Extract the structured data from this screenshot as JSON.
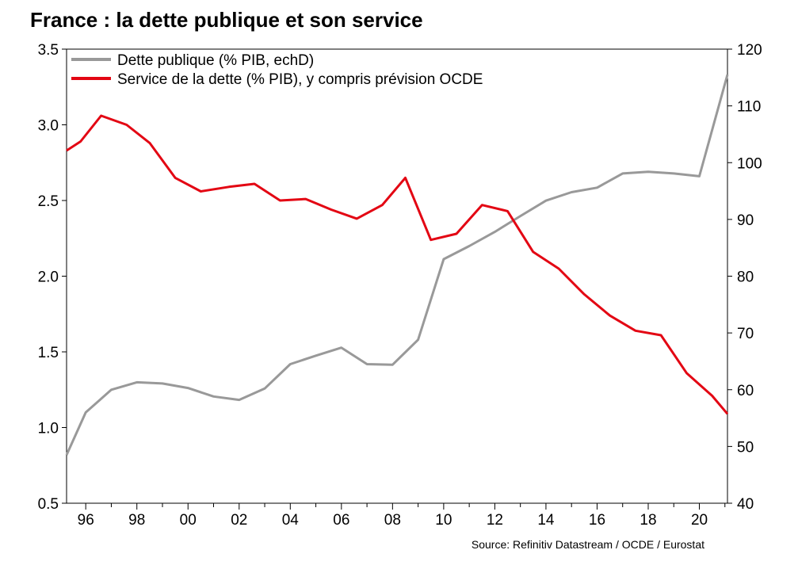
{
  "chart_data": {
    "type": "line",
    "title": "France : la dette publique et son service",
    "source": "Source: Refinitiv Datastream / OCDE / Eurostat",
    "x_range": [
      1995.25,
      2021.1
    ],
    "x_ticks": [
      1996,
      1998,
      2000,
      2002,
      2004,
      2006,
      2008,
      2010,
      2012,
      2014,
      2016,
      2018,
      2020
    ],
    "x_tick_labels": [
      "96",
      "98",
      "00",
      "02",
      "04",
      "06",
      "08",
      "10",
      "12",
      "14",
      "16",
      "18",
      "20"
    ],
    "y_left": {
      "range": [
        0.5,
        3.5
      ],
      "ticks": [
        0.5,
        1.0,
        1.5,
        2.0,
        2.5,
        3.0,
        3.5
      ],
      "tick_labels": [
        "0.5",
        "1.0",
        "1.5",
        "2.0",
        "2.5",
        "3.0",
        "3.5"
      ]
    },
    "y_right": {
      "range": [
        40,
        120
      ],
      "ticks": [
        40,
        50,
        60,
        70,
        80,
        90,
        100,
        110,
        120
      ],
      "tick_labels": [
        "40",
        "50",
        "60",
        "70",
        "80",
        "90",
        "100",
        "110",
        "120"
      ]
    },
    "legend_position": "top-left",
    "grid": false,
    "series": [
      {
        "name": "Dette publique (% PIB, echD)",
        "axis": "right",
        "color": "#999999",
        "points": [
          [
            1995.25,
            48.5
          ],
          [
            1996.0,
            56.0
          ],
          [
            1997.0,
            60.0
          ],
          [
            1998.0,
            61.3
          ],
          [
            1999.0,
            61.1
          ],
          [
            2000.0,
            60.3
          ],
          [
            2001.0,
            58.8
          ],
          [
            2002.0,
            58.2
          ],
          [
            2003.0,
            60.2
          ],
          [
            2004.0,
            64.5
          ],
          [
            2005.0,
            66.0
          ],
          [
            2006.0,
            67.4
          ],
          [
            2007.0,
            64.5
          ],
          [
            2008.0,
            64.4
          ],
          [
            2009.0,
            68.8
          ],
          [
            2010.0,
            83.0
          ],
          [
            2011.0,
            85.3
          ],
          [
            2012.0,
            87.8
          ],
          [
            2013.0,
            90.6
          ],
          [
            2014.0,
            93.3
          ],
          [
            2015.0,
            94.8
          ],
          [
            2016.0,
            95.6
          ],
          [
            2017.0,
            98.1
          ],
          [
            2018.0,
            98.4
          ],
          [
            2019.0,
            98.1
          ],
          [
            2020.0,
            97.6
          ],
          [
            2021.1,
            115.5
          ]
        ]
      },
      {
        "name": "Service de la dette (% PIB), y compris prévision OCDE",
        "axis": "left",
        "color": "#e30613",
        "points": [
          [
            1995.25,
            2.83
          ],
          [
            1995.8,
            2.89
          ],
          [
            1996.6,
            3.06
          ],
          [
            1997.6,
            3.0
          ],
          [
            1998.5,
            2.88
          ],
          [
            1999.5,
            2.65
          ],
          [
            2000.5,
            2.56
          ],
          [
            2001.6,
            2.59
          ],
          [
            2002.6,
            2.61
          ],
          [
            2003.6,
            2.5
          ],
          [
            2004.6,
            2.51
          ],
          [
            2005.6,
            2.44
          ],
          [
            2006.6,
            2.38
          ],
          [
            2007.6,
            2.47
          ],
          [
            2008.5,
            2.65
          ],
          [
            2009.5,
            2.24
          ],
          [
            2010.5,
            2.28
          ],
          [
            2011.5,
            2.47
          ],
          [
            2012.5,
            2.43
          ],
          [
            2013.5,
            2.16
          ],
          [
            2014.5,
            2.05
          ],
          [
            2015.5,
            1.88
          ],
          [
            2016.5,
            1.74
          ],
          [
            2017.5,
            1.64
          ],
          [
            2018.5,
            1.61
          ],
          [
            2019.5,
            1.36
          ],
          [
            2020.5,
            1.21
          ],
          [
            2021.1,
            1.09
          ]
        ]
      }
    ]
  }
}
